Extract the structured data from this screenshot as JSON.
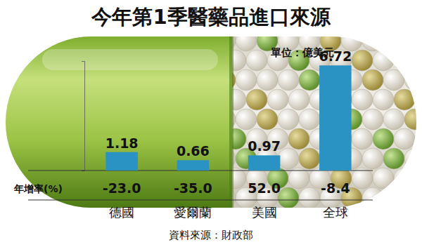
{
  "chart_data": {
    "type": "bar",
    "title": "今年第1季醫藥品進口來源",
    "subtitle": "單位：億美元",
    "categories": [
      "德國",
      "愛爾蘭",
      "美國",
      "全球"
    ],
    "values": [
      1.18,
      0.66,
      0.97,
      6.72
    ],
    "color": "#2a93c4",
    "ylim": [
      0,
      7
    ],
    "yticks": [
      0
    ],
    "grid": false,
    "data_labels": true,
    "tick_labels": "x",
    "growth_rate": {
      "label": "年增率(%)",
      "values": [
        -23.0,
        -35.0,
        52.0,
        -8.4
      ],
      "value_labels": [
        "-23.0",
        "-35.0",
        "52.0",
        "-8.4"
      ]
    },
    "source": "資料來源：財政部"
  }
}
